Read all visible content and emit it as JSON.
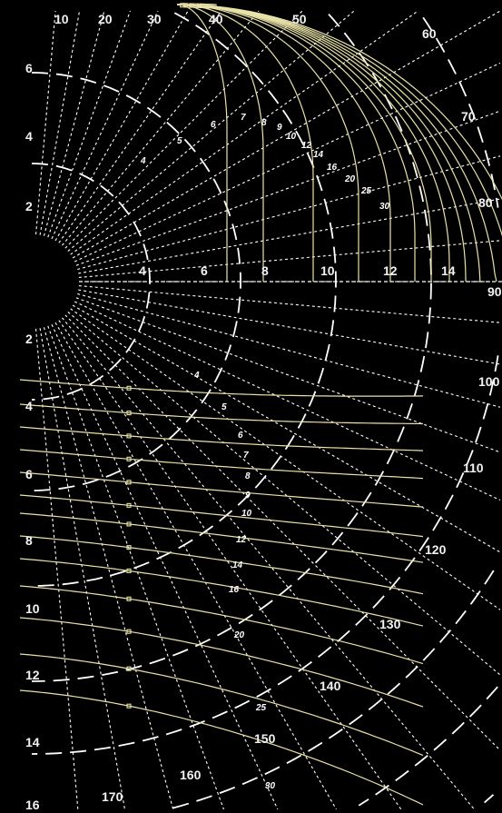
{
  "diagram": {
    "radial_scale_labels": [
      "4",
      "6",
      "8",
      "10",
      "12",
      "14"
    ],
    "left_axis_labels_upper": [
      "2",
      "4",
      "6"
    ],
    "left_axis_labels_lower": [
      "2",
      "4",
      "6",
      "8",
      "10",
      "12",
      "14",
      "16"
    ],
    "angle_labels": [
      "10",
      "20",
      "30",
      "40",
      "50",
      "60",
      "70",
      "80",
      "90",
      "100",
      "110",
      "120",
      "130",
      "140",
      "150",
      "160",
      "170"
    ],
    "upper_curve_labels": [
      "4",
      "5",
      "6",
      "7",
      "8",
      "9",
      "10",
      "12",
      "14",
      "16",
      "20",
      "25",
      "30"
    ],
    "lower_curve_labels": [
      "4",
      "5",
      "6",
      "7",
      "8",
      "9",
      "10",
      "12",
      "14",
      "16",
      "20",
      "25",
      "30"
    ],
    "colors": {
      "background": "#000000",
      "grid": "#ffffff",
      "curves": "#e8e2a8",
      "text": "#f2f2f2"
    }
  }
}
